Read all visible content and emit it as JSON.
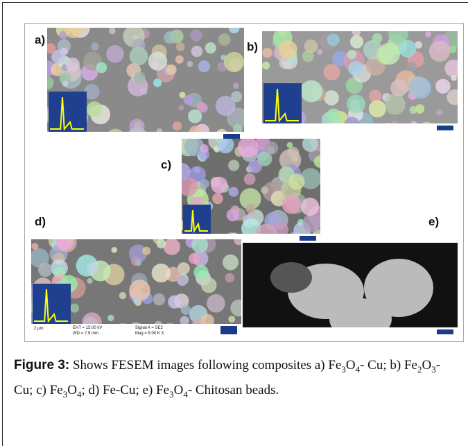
{
  "figure": {
    "panels": [
      {
        "label": "a)"
      },
      {
        "label": "b)"
      },
      {
        "label": "c)"
      },
      {
        "label": "d)",
        "info": [
          "2 μm",
          "EHT = 15.00 kV",
          "WD = 7.9 mm",
          "Signal A = SE2",
          "Mag = 5.00 K X"
        ]
      },
      {
        "label": "e)"
      }
    ]
  },
  "caption": {
    "label": "Figure 3:",
    "runs": [
      {
        "text": " Shows FESEM images following composites a) Fe"
      },
      {
        "sub": "3"
      },
      {
        "text": "O"
      },
      {
        "sub": "4"
      },
      {
        "text": "- Cu; b) Fe"
      },
      {
        "sub": "2"
      },
      {
        "text": "O"
      },
      {
        "sub": "3"
      },
      {
        "text": "- Cu; c) Fe"
      },
      {
        "sub": "3"
      },
      {
        "text": "O"
      },
      {
        "sub": "4"
      },
      {
        "text": "; d) Fe-Cu; e) Fe"
      },
      {
        "sub": "3"
      },
      {
        "text": "O"
      },
      {
        "sub": "4"
      },
      {
        "text": "- Chitosan beads."
      }
    ]
  }
}
